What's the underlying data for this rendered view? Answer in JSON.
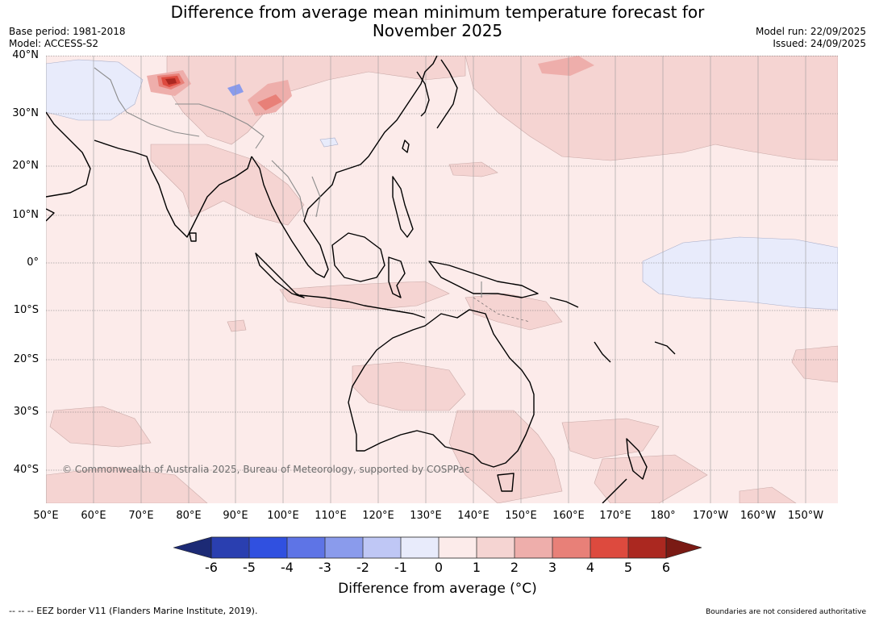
{
  "title": {
    "line1": "Difference from average mean minimum temperature forecast for",
    "line2": "November 2025"
  },
  "meta": {
    "base_period": "Base period: 1981-2018",
    "model": "Model: ACCESS-S2",
    "model_run": "Model run: 22/09/2025",
    "issued": "Issued: 24/09/2025"
  },
  "map": {
    "copyright": "© Commonwealth of Australia 2025, Bureau of Meteorology, supported by COSPPac",
    "lat_labels": [
      "40°N",
      "30°N",
      "20°N",
      "10°N",
      "0°",
      "10°S",
      "20°S",
      "30°S",
      "40°S"
    ],
    "lon_labels": [
      "50°E",
      "60°E",
      "70°E",
      "80°E",
      "90°E",
      "100°E",
      "110°E",
      "120°E",
      "130°E",
      "140°E",
      "150°E",
      "160°E",
      "170°E",
      "180°",
      "170°W",
      "160°W",
      "150°W"
    ]
  },
  "colorbar": {
    "title": "Difference from average (°C)",
    "ticks": [
      "-6",
      "-5",
      "-4",
      "-3",
      "-2",
      "-1",
      "0",
      "1",
      "2",
      "3",
      "4",
      "5",
      "6"
    ],
    "colors": {
      "below_-6": "#1c2a75",
      "-6_-5": "#2a3fb0",
      "-5_-4": "#3050e0",
      "-4_-3": "#5e74e6",
      "-3_-2": "#8a9bec",
      "-2_-1": "#bfc7f5",
      "-1_0": "#e8ebfb",
      "0_1": "#fcebea",
      "1_2": "#f5d4d2",
      "2_3": "#eeaeab",
      "3_4": "#e88078",
      "4_5": "#dd4a3e",
      "5_6": "#ab2820",
      "above_6": "#7a1a14"
    }
  },
  "footer": {
    "eez_note": "--  --  -- EEZ border V11 (Flanders Marine Institute, 2019).",
    "boundaries_note": "Boundaries are not considered authoritative"
  }
}
